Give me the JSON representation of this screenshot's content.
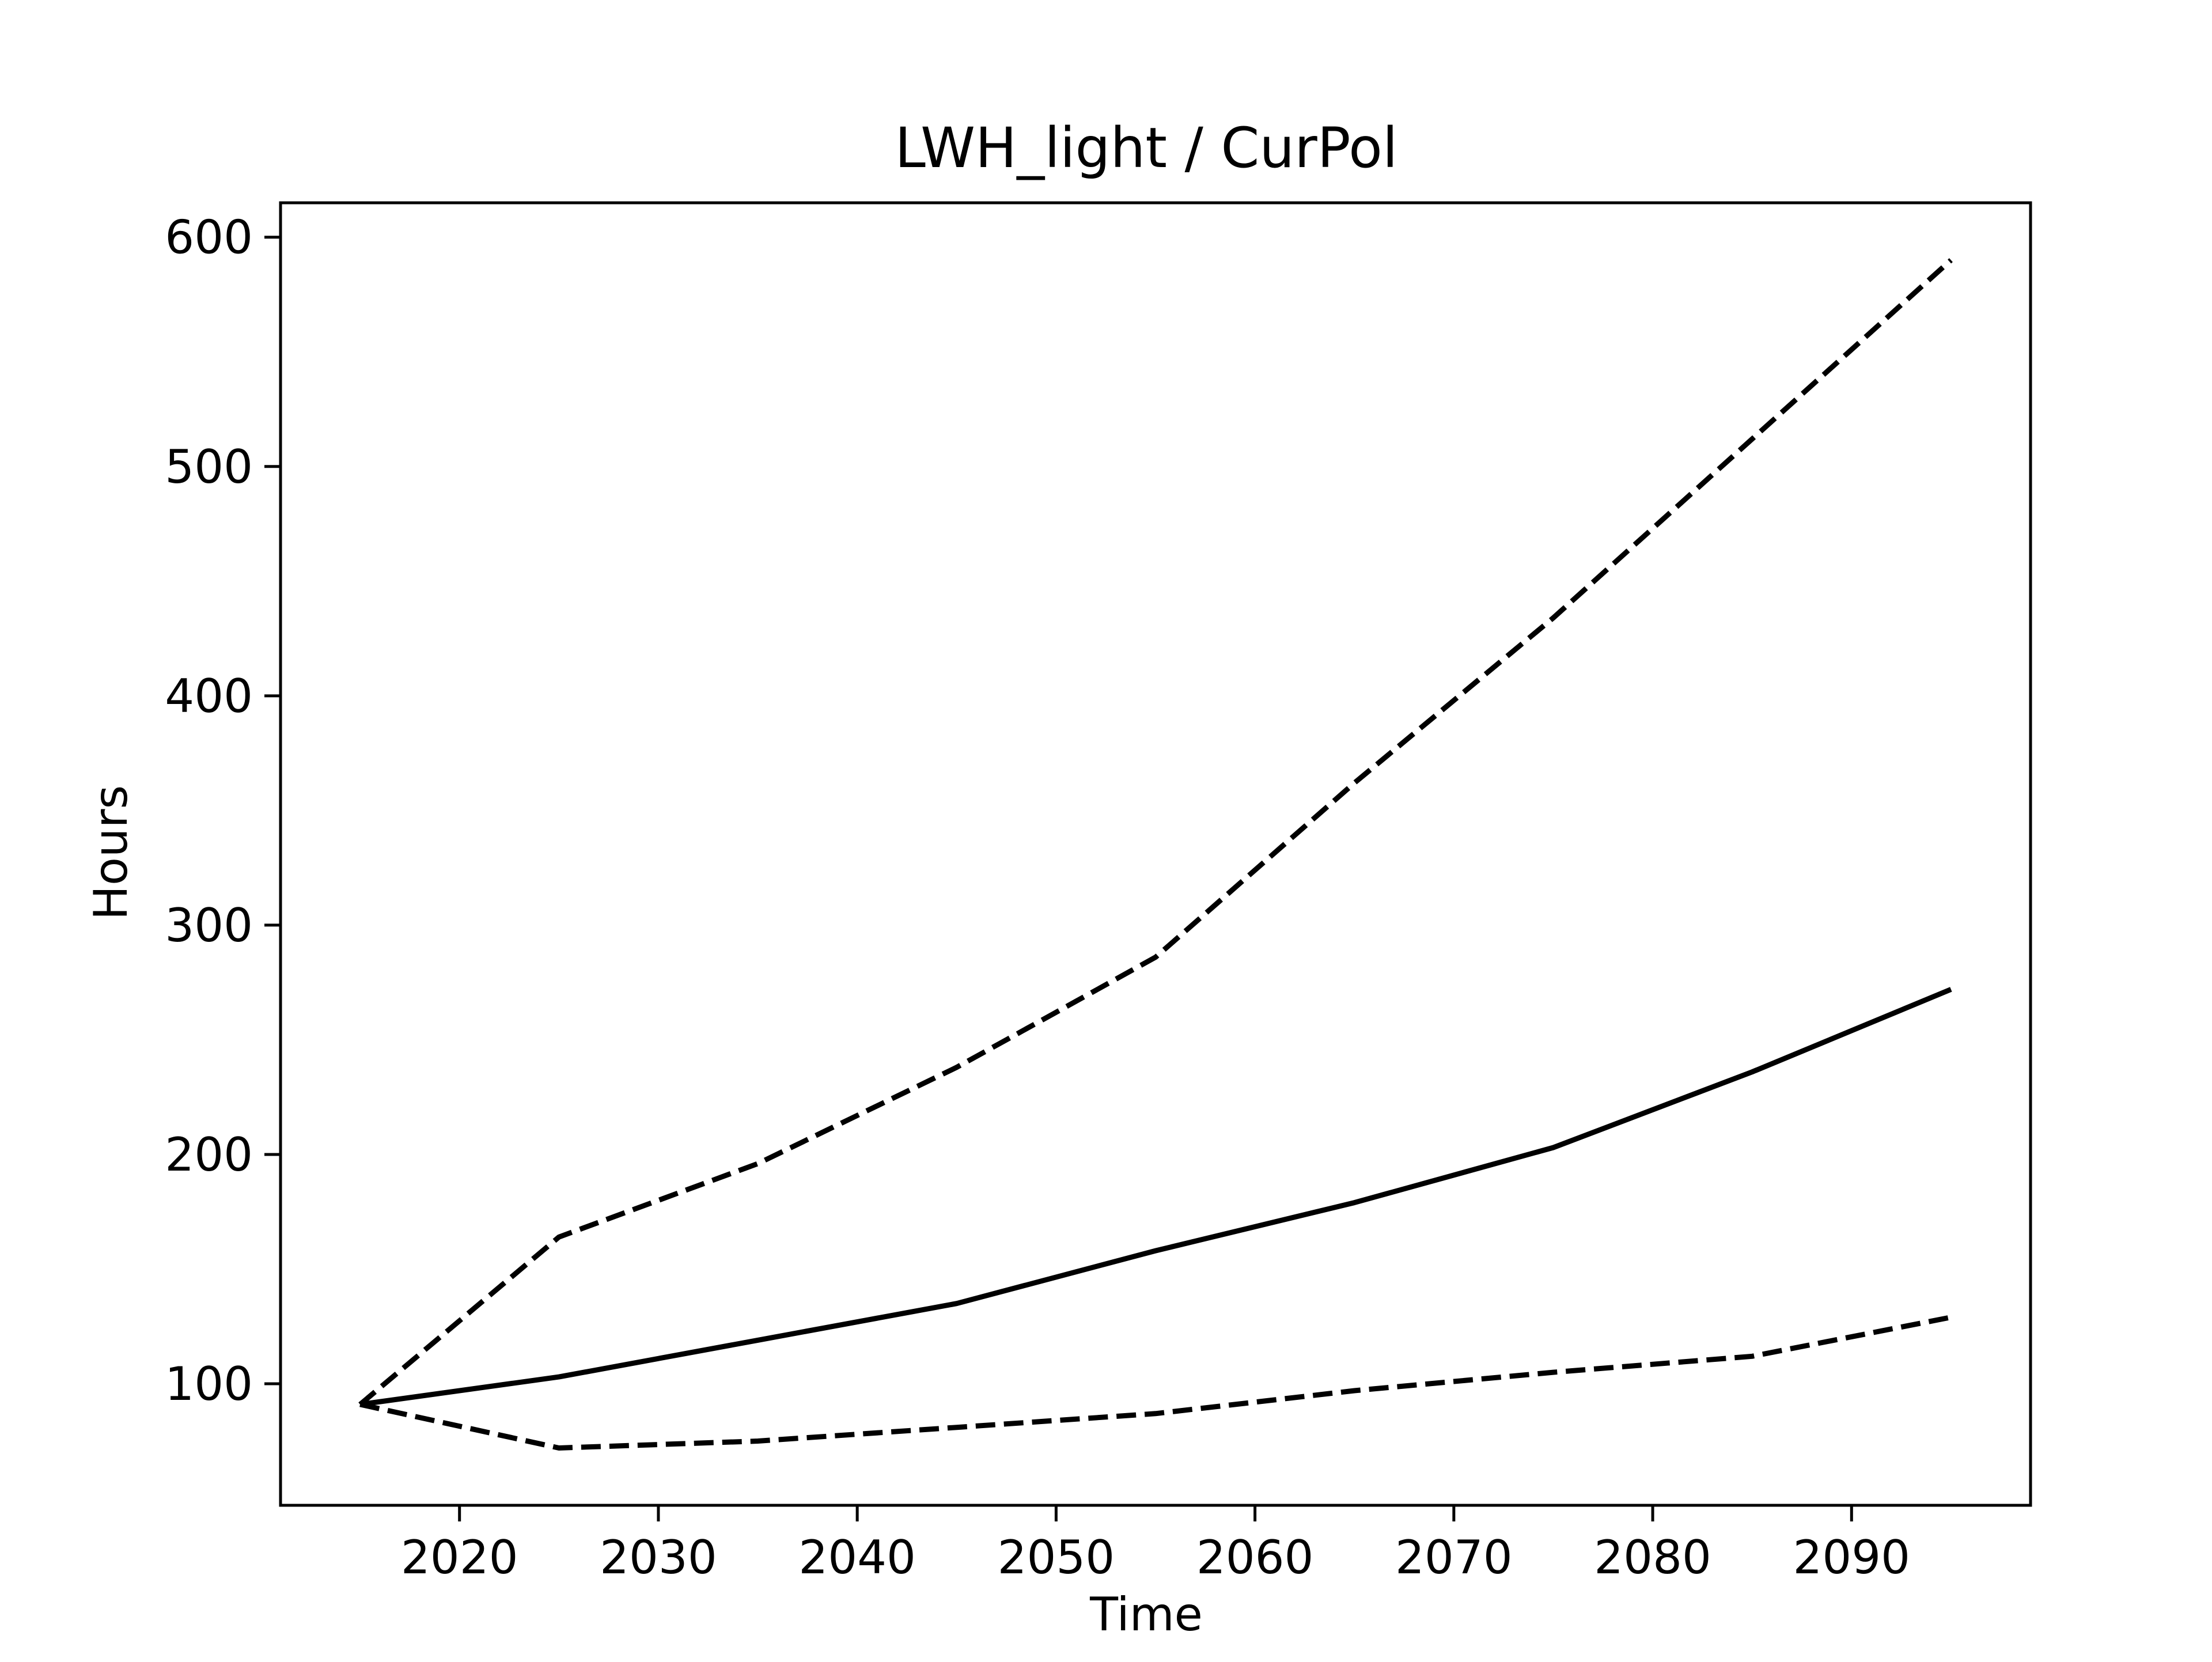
{
  "chart_data": {
    "type": "line",
    "title": "LWH_light / CurPol",
    "xlabel": "Time",
    "ylabel": "Hours",
    "xlim": [
      2011,
      2099
    ],
    "ylim": [
      47,
      615
    ],
    "xticks": [
      2020,
      2030,
      2040,
      2050,
      2060,
      2070,
      2080,
      2090
    ],
    "yticks": [
      100,
      200,
      300,
      400,
      500,
      600
    ],
    "grid": false,
    "legend": "none",
    "line_color": "#000000",
    "series": [
      {
        "style": "dashed",
        "x": [
          2015,
          2025,
          2035,
          2045,
          2055,
          2065,
          2075,
          2085,
          2095
        ],
        "y": [
          91,
          164,
          196,
          238,
          286,
          362,
          434,
          512,
          590
        ]
      },
      {
        "style": "solid",
        "x": [
          2015,
          2025,
          2035,
          2045,
          2055,
          2065,
          2075,
          2085,
          2095
        ],
        "y": [
          91,
          103,
          119,
          135,
          158,
          179,
          203,
          236,
          272
        ]
      },
      {
        "style": "dashed",
        "x": [
          2015,
          2025,
          2035,
          2045,
          2055,
          2065,
          2075,
          2085,
          2095
        ],
        "y": [
          91,
          72,
          75,
          81,
          87,
          97,
          105,
          112,
          129
        ]
      }
    ]
  }
}
